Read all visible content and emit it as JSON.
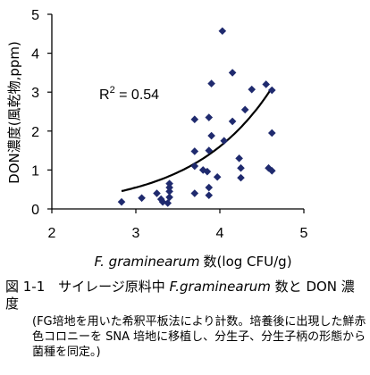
{
  "chart_data": {
    "type": "scatter",
    "xlabel_italic": "F. graminearum",
    "xlabel_rest": "数(log CFU/g)",
    "ylabel": "DON濃度(風乾物,ppm)",
    "xlim": [
      2,
      5
    ],
    "ylim": [
      0,
      5
    ],
    "xticks": [
      "2",
      "3",
      "4",
      "5"
    ],
    "yticks": [
      "0",
      "1",
      "2",
      "3",
      "4",
      "5"
    ],
    "grid": false,
    "annotation": "R² = 0.54",
    "marker_color": "#1f2a6e",
    "trendline_color": "#000000",
    "trendline": {
      "type": "exponential",
      "a": 0.0222,
      "b": 1.07
    },
    "points": [
      {
        "x": 2.83,
        "y": 0.18
      },
      {
        "x": 3.07,
        "y": 0.28
      },
      {
        "x": 3.25,
        "y": 0.4
      },
      {
        "x": 3.3,
        "y": 0.25
      },
      {
        "x": 3.32,
        "y": 0.18
      },
      {
        "x": 3.38,
        "y": 0.15
      },
      {
        "x": 3.4,
        "y": 0.3
      },
      {
        "x": 3.4,
        "y": 0.45
      },
      {
        "x": 3.4,
        "y": 0.55
      },
      {
        "x": 3.4,
        "y": 0.65
      },
      {
        "x": 3.7,
        "y": 0.4
      },
      {
        "x": 3.7,
        "y": 1.1
      },
      {
        "x": 3.7,
        "y": 1.48
      },
      {
        "x": 3.7,
        "y": 2.3
      },
      {
        "x": 3.8,
        "y": 1.0
      },
      {
        "x": 3.85,
        "y": 0.96
      },
      {
        "x": 3.87,
        "y": 0.35
      },
      {
        "x": 3.87,
        "y": 0.55
      },
      {
        "x": 3.87,
        "y": 1.5
      },
      {
        "x": 3.87,
        "y": 2.35
      },
      {
        "x": 3.9,
        "y": 3.22
      },
      {
        "x": 3.9,
        "y": 1.88
      },
      {
        "x": 3.97,
        "y": 0.82
      },
      {
        "x": 4.03,
        "y": 4.57
      },
      {
        "x": 4.05,
        "y": 1.75
      },
      {
        "x": 4.15,
        "y": 3.5
      },
      {
        "x": 4.15,
        "y": 2.25
      },
      {
        "x": 4.23,
        "y": 1.3
      },
      {
        "x": 4.25,
        "y": 1.05
      },
      {
        "x": 4.25,
        "y": 0.8
      },
      {
        "x": 4.3,
        "y": 2.55
      },
      {
        "x": 4.38,
        "y": 3.07
      },
      {
        "x": 4.55,
        "y": 3.2
      },
      {
        "x": 4.58,
        "y": 1.05
      },
      {
        "x": 4.62,
        "y": 3.05
      },
      {
        "x": 4.62,
        "y": 1.95
      },
      {
        "x": 4.62,
        "y": 0.98
      }
    ]
  },
  "caption": {
    "fig_num": "図 1-1",
    "title_pre": "サイレージ原料中",
    "title_italic": "F.graminearum",
    "title_post": "数と DON 濃度",
    "note": "(FG培地を用いた希釈平板法により計数。培養後に出現した鮮赤色コロニーを SNA 培地に移植し、分生子、分生子柄の形態から菌種を同定。)"
  }
}
